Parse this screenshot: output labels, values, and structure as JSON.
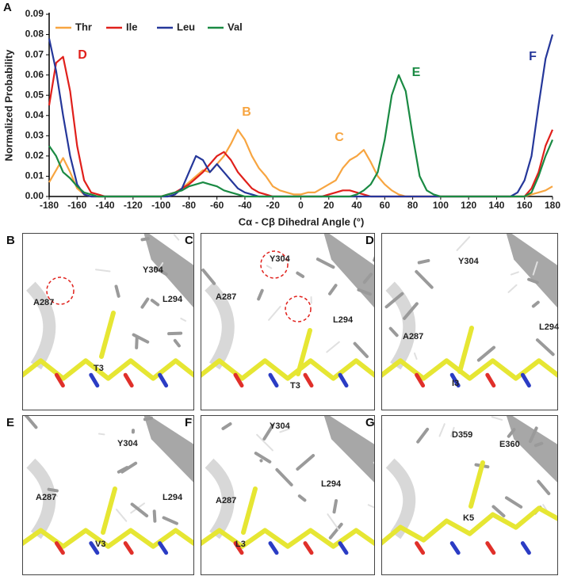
{
  "chart_data": {
    "type": "line",
    "panel_label": "A",
    "x_label": "Cα -  Cβ Dihedral Angle (°)",
    "y_label": "Normalized Probability",
    "x": [
      -180,
      -175,
      -170,
      -165,
      -160,
      -155,
      -150,
      -145,
      -140,
      -135,
      -130,
      -125,
      -120,
      -115,
      -110,
      -105,
      -100,
      -95,
      -90,
      -85,
      -80,
      -75,
      -70,
      -65,
      -60,
      -55,
      -50,
      -45,
      -40,
      -35,
      -30,
      -25,
      -20,
      -15,
      -10,
      -5,
      0,
      5,
      10,
      15,
      20,
      25,
      30,
      35,
      40,
      45,
      50,
      55,
      60,
      65,
      70,
      75,
      80,
      85,
      90,
      95,
      100,
      105,
      110,
      115,
      120,
      125,
      130,
      135,
      140,
      145,
      150,
      155,
      160,
      165,
      170,
      175,
      180
    ],
    "series": [
      {
        "name": "Thr",
        "color": "#f7a541",
        "values": [
          0.007,
          0.013,
          0.019,
          0.012,
          0.004,
          0.001,
          0,
          0,
          0,
          0,
          0,
          0,
          0,
          0,
          0,
          0,
          0,
          0.001,
          0.002,
          0.004,
          0.007,
          0.01,
          0.013,
          0.012,
          0.016,
          0.02,
          0.026,
          0.033,
          0.028,
          0.02,
          0.014,
          0.01,
          0.005,
          0.003,
          0.002,
          0.001,
          0.001,
          0.002,
          0.002,
          0.004,
          0.006,
          0.008,
          0.014,
          0.018,
          0.02,
          0.023,
          0.017,
          0.01,
          0.006,
          0.003,
          0.001,
          0,
          0,
          0,
          0,
          0,
          0,
          0,
          0,
          0,
          0,
          0,
          0,
          0,
          0,
          0,
          0,
          0,
          0,
          0.001,
          0.002,
          0.003,
          0.005
        ]
      },
      {
        "name": "Ile",
        "color": "#e0201b",
        "values": [
          0.045,
          0.066,
          0.069,
          0.052,
          0.025,
          0.008,
          0.002,
          0.001,
          0,
          0,
          0,
          0,
          0,
          0,
          0,
          0,
          0,
          0.001,
          0.002,
          0.004,
          0.006,
          0.009,
          0.012,
          0.016,
          0.02,
          0.022,
          0.018,
          0.012,
          0.008,
          0.004,
          0.002,
          0.001,
          0,
          0,
          0,
          0,
          0,
          0,
          0,
          0,
          0.001,
          0.002,
          0.003,
          0.003,
          0.002,
          0.001,
          0,
          0,
          0,
          0,
          0,
          0,
          0,
          0,
          0,
          0,
          0,
          0,
          0,
          0,
          0,
          0,
          0,
          0,
          0,
          0,
          0,
          0,
          0,
          0.004,
          0.012,
          0.025,
          0.033
        ]
      },
      {
        "name": "Leu",
        "color": "#25379a",
        "values": [
          0.078,
          0.062,
          0.04,
          0.02,
          0.006,
          0.001,
          0,
          0,
          0,
          0,
          0,
          0,
          0,
          0,
          0,
          0,
          0,
          0,
          0.001,
          0.004,
          0.012,
          0.02,
          0.018,
          0.012,
          0.016,
          0.012,
          0.008,
          0.004,
          0.002,
          0.001,
          0,
          0,
          0,
          0,
          0,
          0,
          0,
          0,
          0,
          0,
          0,
          0,
          0,
          0,
          0,
          0,
          0,
          0,
          0,
          0,
          0,
          0,
          0,
          0,
          0,
          0,
          0,
          0,
          0,
          0,
          0,
          0,
          0,
          0,
          0,
          0,
          0,
          0.002,
          0.008,
          0.02,
          0.045,
          0.068,
          0.08
        ]
      },
      {
        "name": "Val",
        "color": "#1a8a43",
        "values": [
          0.025,
          0.02,
          0.012,
          0.009,
          0.005,
          0.002,
          0.001,
          0,
          0,
          0,
          0,
          0,
          0,
          0,
          0,
          0,
          0,
          0.001,
          0.002,
          0.003,
          0.005,
          0.006,
          0.007,
          0.006,
          0.005,
          0.003,
          0.002,
          0.001,
          0,
          0,
          0,
          0,
          0,
          0,
          0,
          0,
          0,
          0,
          0,
          0,
          0,
          0,
          0,
          0,
          0.001,
          0.003,
          0.006,
          0.012,
          0.028,
          0.05,
          0.06,
          0.052,
          0.03,
          0.01,
          0.003,
          0.001,
          0,
          0,
          0,
          0,
          0,
          0,
          0,
          0,
          0,
          0,
          0,
          0,
          0,
          0.002,
          0.01,
          0.02,
          0.028
        ]
      }
    ],
    "xlim": [
      -180,
      180
    ],
    "ylim": [
      0,
      0.09
    ],
    "xticks": [
      -180,
      -160,
      -140,
      -120,
      -100,
      -80,
      -60,
      -40,
      -20,
      0,
      20,
      40,
      60,
      80,
      100,
      120,
      140,
      160,
      180
    ],
    "yticks": [
      {
        "value": 0,
        "label": "0.00"
      },
      {
        "value": 0.01,
        "label": "0.01"
      },
      {
        "value": 0.02,
        "label": "0.02"
      },
      {
        "value": 0.03,
        "label": "0.03"
      },
      {
        "value": 0.04,
        "label": "0.04"
      },
      {
        "value": 0.05,
        "label": "0.05"
      },
      {
        "value": 0.06,
        "label": "0.06"
      },
      {
        "value": 0.07,
        "label": "0.07"
      },
      {
        "value": 0.08,
        "label": "0.08"
      },
      {
        "value": 0.09,
        "label": "0.09"
      }
    ],
    "legend": "top-left",
    "annotations": [
      {
        "text": "D",
        "color": "#e0201b"
      },
      {
        "text": "B",
        "color": "#f7a541"
      },
      {
        "text": "C",
        "color": "#f7a541"
      },
      {
        "text": "E",
        "color": "#1a8a43"
      },
      {
        "text": "F",
        "color": "#25379a"
      }
    ]
  },
  "panels": [
    {
      "label": "B",
      "labels": [
        "A287",
        "Y304",
        "L294",
        "T3"
      ]
    },
    {
      "label": "C",
      "labels": [
        "Y304",
        "A287",
        "L294",
        "T3"
      ]
    },
    {
      "label": "D",
      "labels": [
        "Y304",
        "A287",
        "L294",
        "I3"
      ]
    },
    {
      "label": "E",
      "labels": [
        "Y304",
        "A287",
        "L294",
        "V3"
      ]
    },
    {
      "label": "F",
      "labels": [
        "Y304",
        "A287",
        "L294",
        "L3"
      ]
    },
    {
      "label": "G",
      "labels": [
        "D359",
        "E360",
        "K5"
      ]
    }
  ]
}
